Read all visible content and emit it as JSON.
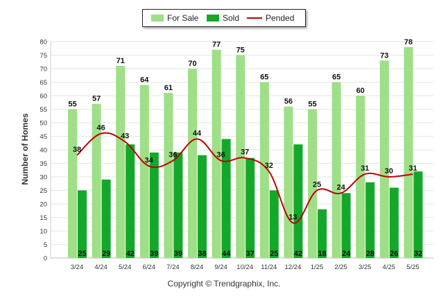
{
  "legend": {
    "for_sale": "For Sale",
    "sold": "Sold",
    "pended": "Pended"
  },
  "colors": {
    "for_sale": "#9fdf87",
    "sold": "#14a82a",
    "pended": "#c00000"
  },
  "footer": {
    "copyright": "Copyright © Trendgraphix, Inc."
  },
  "chart_data": {
    "type": "bar",
    "categories": [
      "3/24",
      "4/24",
      "5/24",
      "6/24",
      "7/24",
      "8/24",
      "9/24",
      "10/24",
      "11/24",
      "12/24",
      "1/25",
      "2/25",
      "3/25",
      "4/25",
      "5/25"
    ],
    "series": [
      {
        "name": "For Sale",
        "type": "bar",
        "values": [
          55,
          57,
          71,
          64,
          61,
          70,
          77,
          75,
          65,
          56,
          55,
          65,
          60,
          73,
          78
        ]
      },
      {
        "name": "Sold",
        "type": "bar",
        "values": [
          25,
          29,
          42,
          39,
          39,
          38,
          44,
          37,
          25,
          42,
          18,
          24,
          28,
          26,
          32
        ]
      },
      {
        "name": "Pended",
        "type": "line",
        "values": [
          38,
          46,
          43,
          34,
          36,
          44,
          36,
          37,
          32,
          13,
          25,
          24,
          31,
          30,
          31
        ]
      }
    ],
    "ylabel": "Number of Homes",
    "ylim": [
      0,
      80
    ],
    "yticks": [
      0,
      5,
      10,
      15,
      20,
      25,
      30,
      35,
      40,
      45,
      50,
      55,
      60,
      65,
      70,
      75,
      80
    ],
    "grid": true,
    "legend_position": "top-center"
  }
}
